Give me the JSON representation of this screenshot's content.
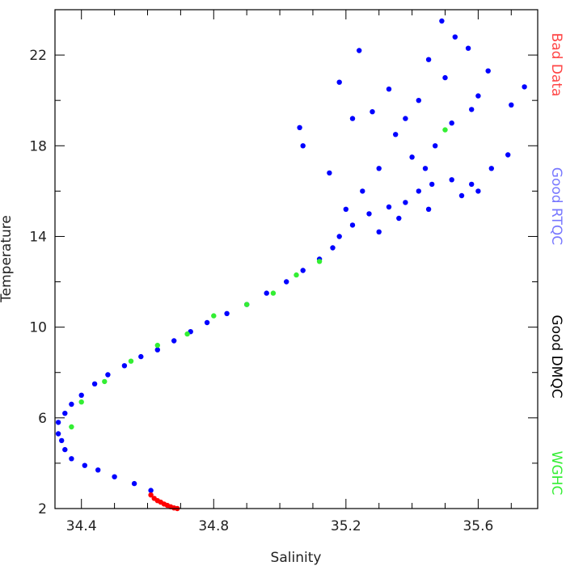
{
  "chart_data": {
    "type": "scatter",
    "title": "",
    "xlabel": "Salinity",
    "ylabel": "Temperature",
    "xlim": [
      34.32,
      35.78
    ],
    "ylim": [
      2,
      24
    ],
    "xticks": [
      34.4,
      34.8,
      35.2,
      35.6
    ],
    "xtick_labels": [
      "34.4",
      "34.8",
      "35.2",
      "35.6"
    ],
    "yticks": [
      2,
      6,
      10,
      14,
      18,
      22
    ],
    "ytick_labels": [
      "2",
      "6",
      "10",
      "14",
      "18",
      "22"
    ],
    "grid": false,
    "legend_position": "right-vertical",
    "series": [
      {
        "name": "Good RTQC",
        "color": "#0000ff",
        "points": [
          [
            34.33,
            5.3
          ],
          [
            34.34,
            5.0
          ],
          [
            34.33,
            5.8
          ],
          [
            34.35,
            6.2
          ],
          [
            34.35,
            4.6
          ],
          [
            34.37,
            6.6
          ],
          [
            34.37,
            4.2
          ],
          [
            34.4,
            7.0
          ],
          [
            34.41,
            3.9
          ],
          [
            34.44,
            7.5
          ],
          [
            34.45,
            3.7
          ],
          [
            34.48,
            7.9
          ],
          [
            34.5,
            3.4
          ],
          [
            34.53,
            8.3
          ],
          [
            34.56,
            3.1
          ],
          [
            34.58,
            8.7
          ],
          [
            34.61,
            2.8
          ],
          [
            34.63,
            9.0
          ],
          [
            34.68,
            9.4
          ],
          [
            34.73,
            9.8
          ],
          [
            34.78,
            10.2
          ],
          [
            34.84,
            10.6
          ],
          [
            34.9,
            11.0
          ],
          [
            34.96,
            11.5
          ],
          [
            35.02,
            12.0
          ],
          [
            35.07,
            12.5
          ],
          [
            35.12,
            13.0
          ],
          [
            35.16,
            13.5
          ],
          [
            35.18,
            14.0
          ],
          [
            35.22,
            14.5
          ],
          [
            35.27,
            15.0
          ],
          [
            35.33,
            15.3
          ],
          [
            35.38,
            15.5
          ],
          [
            35.42,
            16.0
          ],
          [
            35.46,
            16.3
          ],
          [
            35.52,
            16.5
          ],
          [
            35.58,
            16.3
          ],
          [
            35.64,
            17.0
          ],
          [
            35.69,
            17.6
          ],
          [
            35.3,
            14.2
          ],
          [
            35.36,
            14.8
          ],
          [
            35.45,
            15.2
          ],
          [
            35.25,
            16.0
          ],
          [
            35.3,
            17.0
          ],
          [
            35.4,
            17.5
          ],
          [
            35.47,
            18.0
          ],
          [
            35.35,
            18.5
          ],
          [
            35.52,
            19.0
          ],
          [
            35.28,
            19.5
          ],
          [
            35.42,
            20.0
          ],
          [
            35.6,
            20.2
          ],
          [
            35.33,
            20.5
          ],
          [
            35.5,
            21.0
          ],
          [
            35.63,
            21.3
          ],
          [
            35.45,
            21.8
          ],
          [
            35.57,
            22.3
          ],
          [
            35.24,
            22.2
          ],
          [
            35.53,
            22.8
          ],
          [
            35.49,
            23.5
          ],
          [
            35.74,
            20.6
          ],
          [
            35.7,
            19.8
          ],
          [
            35.18,
            20.8
          ],
          [
            35.22,
            19.2
          ],
          [
            35.06,
            18.8
          ],
          [
            35.07,
            18.0
          ],
          [
            35.15,
            16.8
          ],
          [
            35.38,
            19.2
          ],
          [
            35.58,
            19.6
          ],
          [
            35.44,
            17.0
          ],
          [
            35.2,
            15.2
          ],
          [
            35.55,
            15.8
          ],
          [
            35.6,
            16.0
          ]
        ]
      },
      {
        "name": "Bad Data",
        "color": "#ff0000",
        "points": [
          [
            34.61,
            2.6
          ],
          [
            34.62,
            2.45
          ],
          [
            34.63,
            2.35
          ],
          [
            34.64,
            2.28
          ],
          [
            34.65,
            2.2
          ],
          [
            34.66,
            2.14
          ],
          [
            34.67,
            2.08
          ],
          [
            34.68,
            2.03
          ],
          [
            34.69,
            2.0
          ]
        ]
      },
      {
        "name": "WGHC",
        "color": "#33ee33",
        "points": [
          [
            34.37,
            5.6
          ],
          [
            34.4,
            6.7
          ],
          [
            34.47,
            7.6
          ],
          [
            34.55,
            8.5
          ],
          [
            34.63,
            9.2
          ],
          [
            34.72,
            9.7
          ],
          [
            34.8,
            10.5
          ],
          [
            34.9,
            11.0
          ],
          [
            34.98,
            11.5
          ],
          [
            35.05,
            12.3
          ],
          [
            35.12,
            12.9
          ],
          [
            35.5,
            18.7
          ]
        ]
      }
    ],
    "legend": [
      {
        "label": "Bad Data",
        "color": "#ff4444"
      },
      {
        "label": "Good RTQC",
        "color": "#7777ff"
      },
      {
        "label": "Good DMQC",
        "color": "#000000"
      },
      {
        "label": "WGHC",
        "color": "#33ee33"
      }
    ]
  }
}
